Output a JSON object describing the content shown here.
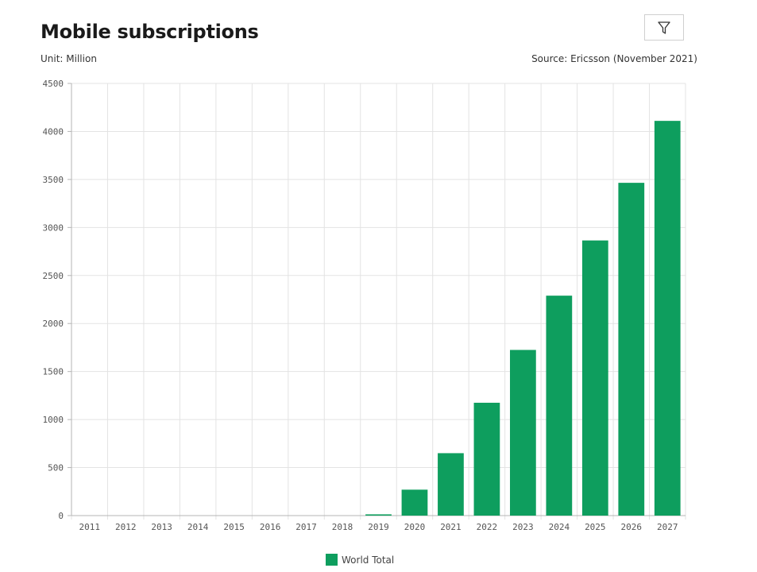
{
  "header": {
    "title": "Mobile subscriptions",
    "unit": "Unit: Million",
    "source": "Source: Ericsson (November 2021)",
    "filter_icon": "filter-icon"
  },
  "legend": {
    "label": "World Total"
  },
  "colors": {
    "bar": "#0e9e5e",
    "grid": "#e3e3e3",
    "axis": "#b5b5b5"
  },
  "chart_data": {
    "type": "bar",
    "title": "Mobile subscriptions",
    "xlabel": "",
    "ylabel": "",
    "categories": [
      "2011",
      "2012",
      "2013",
      "2014",
      "2015",
      "2016",
      "2017",
      "2018",
      "2019",
      "2020",
      "2021",
      "2022",
      "2023",
      "2024",
      "2025",
      "2026",
      "2027"
    ],
    "series": [
      {
        "name": "World Total",
        "values": [
          0,
          0,
          0,
          0,
          0,
          0,
          0,
          0,
          13,
          270,
          650,
          1175,
          1725,
          2290,
          2865,
          3465,
          4110
        ]
      }
    ],
    "ylim": [
      0,
      4500
    ],
    "yticks": [
      0,
      500,
      1000,
      1500,
      2000,
      2500,
      3000,
      3500,
      4000,
      4500
    ],
    "grid": true,
    "legend_position": "bottom-center"
  }
}
